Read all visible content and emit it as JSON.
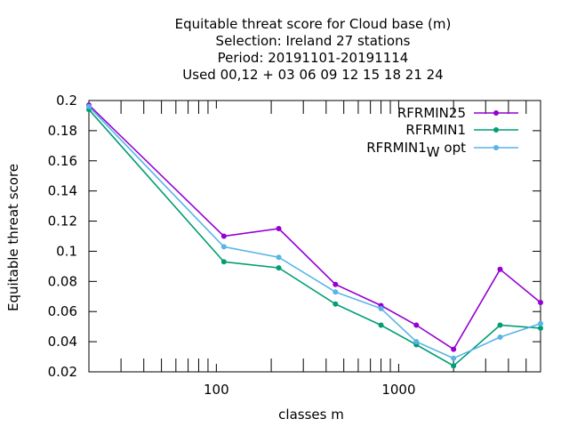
{
  "chart_data": {
    "type": "line",
    "title_lines": [
      "Equitable threat score  for Cloud base (m)",
      "Selection: Ireland     27 stations",
      "Period: 20191101-20191114",
      "Used  00,12  + 03 06 09 12 15 18 21 24"
    ],
    "xlabel": "classes m",
    "ylabel": "Equitable threat score",
    "x_scale": "log",
    "xlim": [
      20,
      6000
    ],
    "ylim": [
      0.02,
      0.2
    ],
    "x_ticks": [
      100,
      1000
    ],
    "x_tick_labels": [
      "100",
      "1000"
    ],
    "y_ticks": [
      0.02,
      0.04,
      0.06,
      0.08,
      0.1,
      0.12,
      0.14,
      0.16,
      0.18,
      0.2
    ],
    "y_tick_labels": [
      "0.02",
      "0.04",
      "0.06",
      "0.08",
      "0.1",
      "0.12",
      "0.14",
      "0.16",
      "0.18",
      "0.2"
    ],
    "legend_position": "top-right",
    "grid": false,
    "series": [
      {
        "name": "RFRMIN25",
        "color": "#9400d3",
        "x": [
          20,
          110,
          220,
          450,
          800,
          1250,
          2000,
          3600,
          6000
        ],
        "y": [
          0.197,
          0.11,
          0.115,
          0.078,
          0.064,
          0.051,
          0.035,
          0.088,
          0.066
        ]
      },
      {
        "name": "RFRMIN1",
        "color": "#009e73",
        "x": [
          20,
          110,
          220,
          450,
          800,
          1250,
          2000,
          3600,
          6000
        ],
        "y": [
          0.194,
          0.093,
          0.089,
          0.065,
          0.051,
          0.038,
          0.024,
          0.051,
          0.049
        ]
      },
      {
        "name": "RFRMIN1",
        "name_subscript": "W",
        "name_suffix": " opt",
        "color": "#56b4e9",
        "x": [
          20,
          110,
          220,
          450,
          800,
          1250,
          2000,
          3600,
          6000
        ],
        "y": [
          0.196,
          0.103,
          0.096,
          0.073,
          0.062,
          0.04,
          0.029,
          0.043,
          0.052
        ]
      }
    ]
  }
}
